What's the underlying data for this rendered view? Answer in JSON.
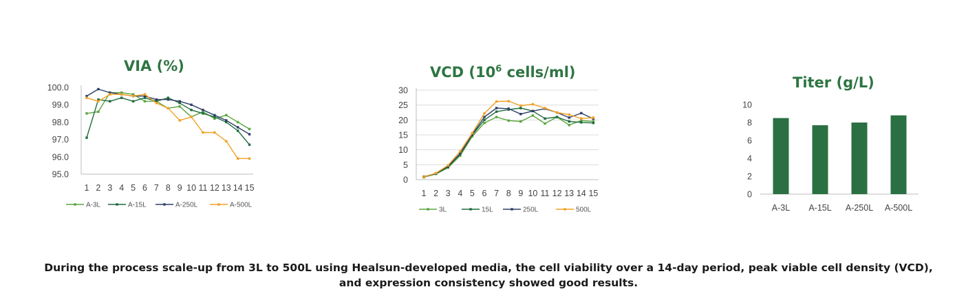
{
  "chart_data": [
    {
      "type": "line",
      "title": "VIA (%)",
      "x": [
        "1",
        "2",
        "3",
        "4",
        "5",
        "6",
        "7",
        "8",
        "9",
        "10",
        "11",
        "12",
        "13",
        "14",
        "15"
      ],
      "ylim": [
        95.0,
        100.0
      ],
      "yticks": [
        "95.0",
        "96.0",
        "97.0",
        "98.0",
        "99.0",
        "100.0"
      ],
      "legend_position": "bottom",
      "series": [
        {
          "name": "A-3L",
          "color": "#5aa640",
          "values": [
            98.5,
            98.6,
            99.7,
            99.7,
            99.6,
            99.2,
            99.2,
            98.8,
            98.9,
            98.3,
            98.6,
            98.2,
            98.4,
            98.0,
            97.6
          ]
        },
        {
          "name": "A-15L",
          "color": "#1e6b3c",
          "values": [
            97.1,
            99.3,
            99.2,
            99.4,
            99.2,
            99.4,
            99.2,
            99.4,
            99.1,
            98.7,
            98.5,
            98.3,
            98.0,
            97.5,
            96.7
          ]
        },
        {
          "name": "A-250L",
          "color": "#2f3f66",
          "values": [
            99.5,
            99.9,
            99.7,
            99.6,
            99.5,
            99.5,
            99.3,
            99.3,
            99.2,
            99.0,
            98.7,
            98.4,
            98.1,
            97.7,
            97.3
          ]
        },
        {
          "name": "A-500L",
          "color": "#f2a024",
          "values": [
            99.4,
            99.2,
            99.6,
            99.6,
            99.5,
            99.6,
            99.1,
            98.8,
            98.1,
            98.3,
            97.4,
            97.4,
            96.9,
            95.9,
            95.9
          ]
        }
      ]
    },
    {
      "type": "line",
      "title_main": "VCD (10",
      "title_sup": "6",
      "title_end": " cells/ml)",
      "x": [
        "1",
        "2",
        "3",
        "4",
        "5",
        "6",
        "7",
        "8",
        "9",
        "10",
        "11",
        "12",
        "13",
        "14",
        "15"
      ],
      "ylim": [
        0,
        30
      ],
      "yticks": [
        "0",
        "5",
        "10",
        "15",
        "20",
        "25",
        "30"
      ],
      "legend_position": "bottom",
      "series": [
        {
          "name": "3L",
          "color": "#5aa640",
          "values": [
            0.8,
            1.9,
            4.0,
            8.0,
            14.5,
            19.0,
            21.0,
            19.8,
            19.5,
            21.5,
            18.8,
            21.0,
            18.3,
            19.8,
            19.5
          ]
        },
        {
          "name": "15L",
          "color": "#1e6b3c",
          "values": [
            0.9,
            2.0,
            4.3,
            8.5,
            15.0,
            20.0,
            22.8,
            23.5,
            24.0,
            23.0,
            20.5,
            21.0,
            19.5,
            19.2,
            19.0
          ]
        },
        {
          "name": "250L",
          "color": "#2f3f66",
          "values": [
            1.0,
            2.1,
            4.5,
            8.8,
            15.2,
            21.0,
            24.0,
            23.8,
            22.0,
            23.0,
            23.8,
            22.5,
            20.8,
            22.3,
            20.4
          ]
        },
        {
          "name": "500L",
          "color": "#f2a024",
          "values": [
            0.9,
            2.2,
            4.8,
            9.5,
            15.6,
            22.2,
            26.2,
            26.3,
            24.8,
            25.3,
            24.0,
            22.5,
            21.8,
            20.5,
            20.8
          ]
        }
      ]
    },
    {
      "type": "bar",
      "title": "Titer (g/L)",
      "categories": [
        "A-3L",
        "A-15L",
        "A-250L",
        "A-500L"
      ],
      "values": [
        8.5,
        7.7,
        8.0,
        8.8
      ],
      "ylim": [
        0,
        10
      ],
      "yticks": [
        "0",
        "2",
        "4",
        "6",
        "8",
        "10"
      ],
      "color": "#2a7042"
    }
  ],
  "caption": {
    "line1": "During the process scale-up from 3L to 500L using Healsun-developed media, the cell viability over a 14-day period, peak viable cell density (VCD),",
    "line2": "and expression consistency showed good results."
  }
}
